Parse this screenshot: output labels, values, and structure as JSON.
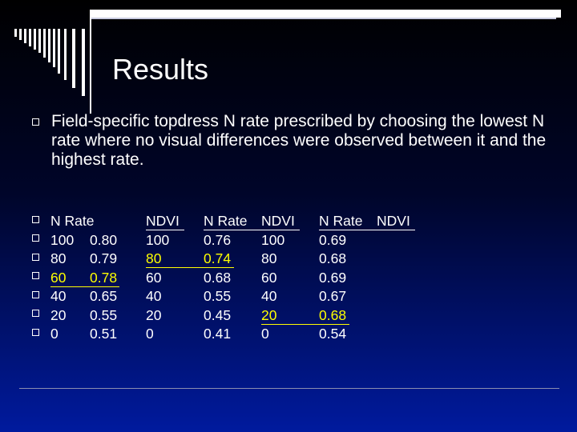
{
  "slide": {
    "title": "Results",
    "paragraph": "Field-specific topdress N rate prescribed by choosing the lowest N rate where no visual differences were observed between it and the highest rate."
  },
  "table": {
    "headers": [
      "N Rate",
      "NDVI",
      "N Rate",
      "NDVI",
      "N Rate",
      "NDVI"
    ],
    "rows": [
      [
        "100",
        "0.80",
        "100",
        "0.76",
        "100",
        "0.69"
      ],
      [
        "80",
        "0.79",
        "80",
        "0.74",
        "80",
        "0.68"
      ],
      [
        "60",
        "0.78",
        "60",
        "0.68",
        "60",
        "0.69"
      ],
      [
        "40",
        "0.65",
        "40",
        "0.55",
        "40",
        "0.67"
      ],
      [
        "20",
        "0.55",
        "20",
        "0.45",
        "20",
        "0.68"
      ],
      [
        "0",
        "0.51",
        "0",
        "0.41",
        "0",
        "0.54"
      ]
    ],
    "highlighted_cells": [
      {
        "group": 1,
        "row": 2
      },
      {
        "group": 2,
        "row": 1
      },
      {
        "group": 3,
        "row": 4
      }
    ]
  },
  "colors": {
    "background_top": "#000000",
    "background_bottom": "#001a9e",
    "text": "#ffffff",
    "highlight": "#ffff00"
  },
  "icons": [
    "square-bullet-icon",
    "corner-bars-decoration"
  ]
}
